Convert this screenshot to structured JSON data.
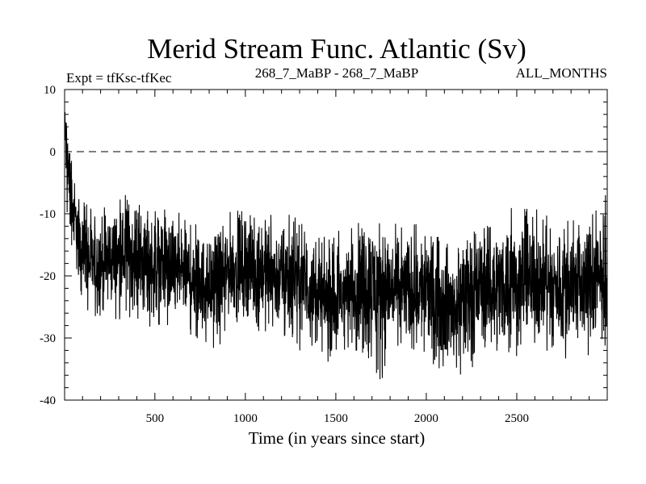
{
  "chart_data": {
    "type": "line",
    "title": "Merid Stream Func. Atlantic (Sv)",
    "subtitle_left": "Expt = tfKsc-tfKec",
    "subtitle_center": "268_7_MaBP - 268_7_MaBP",
    "subtitle_right": "ALL_MONTHS",
    "xlabel": "Time (in years since start)",
    "ylabel": "",
    "xlim": [
      1,
      3000
    ],
    "ylim": [
      -40,
      10
    ],
    "x_ticks": [
      500,
      1000,
      1500,
      2000,
      2500
    ],
    "y_ticks": [
      10,
      0,
      -10,
      -20,
      -30,
      -40
    ],
    "reference_line": {
      "y": 0,
      "style": "dashed"
    },
    "series": [
      {
        "name": "Merid Stream Func. Atlantic",
        "note": "annual-mean time series, ~3000 points; values approximated by a running mean plus variability envelope",
        "x": [
          1,
          10,
          20,
          30,
          40,
          60,
          80,
          100,
          150,
          200,
          250,
          300,
          350,
          400,
          450,
          500,
          550,
          600,
          650,
          700,
          750,
          800,
          850,
          900,
          950,
          1000,
          1050,
          1100,
          1150,
          1200,
          1250,
          1300,
          1350,
          1400,
          1450,
          1500,
          1550,
          1600,
          1650,
          1700,
          1750,
          1800,
          1850,
          1900,
          1950,
          2000,
          2050,
          2100,
          2150,
          2200,
          2250,
          2300,
          2350,
          2400,
          2450,
          2500,
          2550,
          2600,
          2650,
          2700,
          2750,
          2800,
          2850,
          2900,
          2950,
          3000
        ],
        "mean": [
          5,
          2,
          -2,
          -5,
          -8,
          -11,
          -14,
          -16,
          -18,
          -18,
          -17,
          -17,
          -16,
          -17,
          -18,
          -18,
          -18,
          -19,
          -19,
          -20,
          -21,
          -21,
          -21,
          -19,
          -19,
          -18,
          -19,
          -19,
          -20,
          -20,
          -20,
          -21,
          -22,
          -23,
          -24,
          -24,
          -23,
          -22,
          -21,
          -21,
          -21,
          -22,
          -22,
          -22,
          -22,
          -22,
          -23,
          -24,
          -25,
          -24,
          -23,
          -22,
          -22,
          -22,
          -21,
          -21,
          -21,
          -21,
          -21,
          -22,
          -22,
          -21,
          -21,
          -21,
          -21,
          -20
        ],
        "min": [
          -6,
          -8,
          -12,
          -14,
          -16,
          -20,
          -22,
          -25,
          -27,
          -28,
          -27,
          -27,
          -27,
          -28,
          -29,
          -29,
          -28,
          -29,
          -29,
          -30,
          -31,
          -31,
          -33,
          -28,
          -28,
          -28,
          -29,
          -29,
          -30,
          -30,
          -31,
          -32,
          -32,
          -33,
          -35,
          -34,
          -33,
          -32,
          -33,
          -36,
          -37,
          -33,
          -33,
          -34,
          -33,
          -34,
          -35,
          -36,
          -37,
          -36,
          -35,
          -33,
          -33,
          -34,
          -33,
          -33,
          -32,
          -32,
          -32,
          -33,
          -34,
          -33,
          -34,
          -33,
          -32,
          -31
        ],
        "max": [
          8,
          7,
          5,
          2,
          -1,
          -4,
          -6,
          -8,
          -9,
          -9,
          -8,
          -8,
          -6,
          -8,
          -9,
          -8,
          -9,
          -9,
          -10,
          -11,
          -12,
          -12,
          -11,
          -9,
          -9,
          -8,
          -9,
          -9,
          -10,
          -10,
          -10,
          -11,
          -12,
          -13,
          -14,
          -13,
          -12,
          -11,
          -9,
          -9,
          -10,
          -11,
          -12,
          -12,
          -11,
          -12,
          -13,
          -14,
          -15,
          -14,
          -13,
          -11,
          -11,
          -10,
          -9,
          -9,
          -9,
          -9,
          -10,
          -11,
          -11,
          -10,
          -10,
          -10,
          -9,
          -6
        ]
      }
    ]
  }
}
